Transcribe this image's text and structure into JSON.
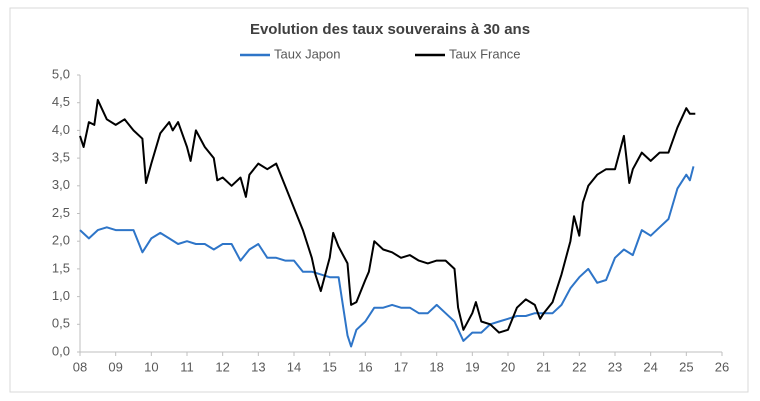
{
  "chart_data": {
    "type": "line",
    "title": "Evolution des taux souverains à 30 ans",
    "series": [
      {
        "name": "Taux Japon",
        "color": "#2e75c8",
        "x": [
          8,
          8.25,
          8.5,
          8.75,
          9,
          9.25,
          9.5,
          9.75,
          10,
          10.25,
          10.5,
          10.75,
          11,
          11.25,
          11.5,
          11.75,
          12,
          12.25,
          12.5,
          12.75,
          13,
          13.25,
          13.5,
          13.75,
          14,
          14.25,
          14.5,
          14.75,
          15,
          15.25,
          15.5,
          15.6,
          15.75,
          16,
          16.25,
          16.5,
          16.75,
          17,
          17.25,
          17.5,
          17.75,
          18,
          18.25,
          18.5,
          18.75,
          19,
          19.25,
          19.5,
          19.75,
          20,
          20.25,
          20.5,
          20.75,
          21,
          21.25,
          21.5,
          21.75,
          22,
          22.25,
          22.5,
          22.75,
          23,
          23.25,
          23.5,
          23.75,
          24,
          24.25,
          24.5,
          24.75,
          25,
          25.1,
          25.2
        ],
        "values": [
          2.2,
          2.05,
          2.2,
          2.25,
          2.2,
          2.2,
          2.2,
          1.8,
          2.05,
          2.15,
          2.05,
          1.95,
          2.0,
          1.95,
          1.95,
          1.85,
          1.95,
          1.95,
          1.65,
          1.85,
          1.95,
          1.7,
          1.7,
          1.65,
          1.65,
          1.45,
          1.45,
          1.4,
          1.35,
          1.35,
          0.3,
          0.1,
          0.4,
          0.55,
          0.8,
          0.8,
          0.85,
          0.8,
          0.8,
          0.7,
          0.7,
          0.85,
          0.7,
          0.55,
          0.2,
          0.35,
          0.35,
          0.5,
          0.55,
          0.6,
          0.65,
          0.65,
          0.7,
          0.7,
          0.7,
          0.85,
          1.15,
          1.35,
          1.5,
          1.25,
          1.3,
          1.7,
          1.85,
          1.75,
          2.2,
          2.1,
          2.25,
          2.4,
          2.95,
          3.2,
          3.1,
          3.35
        ]
      },
      {
        "name": "Taux France",
        "color": "#000000",
        "x": [
          8,
          8.1,
          8.25,
          8.4,
          8.5,
          8.75,
          9,
          9.25,
          9.5,
          9.75,
          9.85,
          10,
          10.25,
          10.5,
          10.6,
          10.75,
          11,
          11.1,
          11.25,
          11.5,
          11.75,
          11.85,
          12,
          12.25,
          12.5,
          12.65,
          12.75,
          13,
          13.25,
          13.5,
          13.75,
          14,
          14.25,
          14.5,
          14.6,
          14.75,
          15,
          15.1,
          15.25,
          15.5,
          15.6,
          15.75,
          16,
          16.1,
          16.25,
          16.5,
          16.75,
          17,
          17.25,
          17.5,
          17.75,
          18,
          18.25,
          18.5,
          18.6,
          18.75,
          19,
          19.1,
          19.25,
          19.5,
          19.75,
          20,
          20.25,
          20.5,
          20.75,
          20.9,
          21,
          21.25,
          21.5,
          21.75,
          21.85,
          22,
          22.1,
          22.25,
          22.5,
          22.75,
          23,
          23.25,
          23.4,
          23.5,
          23.75,
          24,
          24.25,
          24.5,
          24.75,
          25,
          25.1,
          25.25
        ],
        "values": [
          3.9,
          3.7,
          4.15,
          4.1,
          4.55,
          4.2,
          4.1,
          4.2,
          4.0,
          3.85,
          3.05,
          3.4,
          3.95,
          4.15,
          4.0,
          4.15,
          3.7,
          3.45,
          4.0,
          3.7,
          3.5,
          3.1,
          3.15,
          3.0,
          3.15,
          2.8,
          3.2,
          3.4,
          3.3,
          3.4,
          3.0,
          2.6,
          2.2,
          1.7,
          1.4,
          1.1,
          1.7,
          2.15,
          1.9,
          1.6,
          0.85,
          0.9,
          1.3,
          1.45,
          2.0,
          1.85,
          1.8,
          1.7,
          1.75,
          1.65,
          1.6,
          1.65,
          1.65,
          1.5,
          0.8,
          0.4,
          0.7,
          0.9,
          0.55,
          0.5,
          0.35,
          0.4,
          0.8,
          0.95,
          0.85,
          0.6,
          0.7,
          0.9,
          1.4,
          2.0,
          2.45,
          2.1,
          2.7,
          3.0,
          3.2,
          3.3,
          3.3,
          3.9,
          3.05,
          3.3,
          3.6,
          3.45,
          3.6,
          3.6,
          4.05,
          4.4,
          4.3,
          4.3
        ]
      }
    ],
    "xlim": [
      8,
      26
    ],
    "xticks": [
      {
        "value": 8,
        "label": "08"
      },
      {
        "value": 9,
        "label": "09"
      },
      10,
      11,
      12,
      13,
      14,
      15,
      16,
      17,
      18,
      19,
      20,
      21,
      22,
      23,
      24,
      25,
      26
    ],
    "ylim": [
      0,
      5
    ],
    "yticks": [
      {
        "value": 0,
        "label": "0,0"
      },
      {
        "value": 0.5,
        "label": "0,5"
      },
      {
        "value": 1,
        "label": "1,0"
      },
      {
        "value": 1.5,
        "label": "1,5"
      },
      {
        "value": 2,
        "label": "2,0"
      },
      {
        "value": 2.5,
        "label": "2,5"
      },
      {
        "value": 3,
        "label": "3,0"
      },
      {
        "value": 3.5,
        "label": "3,5"
      },
      {
        "value": 4,
        "label": "4,0"
      },
      {
        "value": 4.5,
        "label": "4,5"
      },
      {
        "value": 5,
        "label": "5,0"
      }
    ]
  }
}
